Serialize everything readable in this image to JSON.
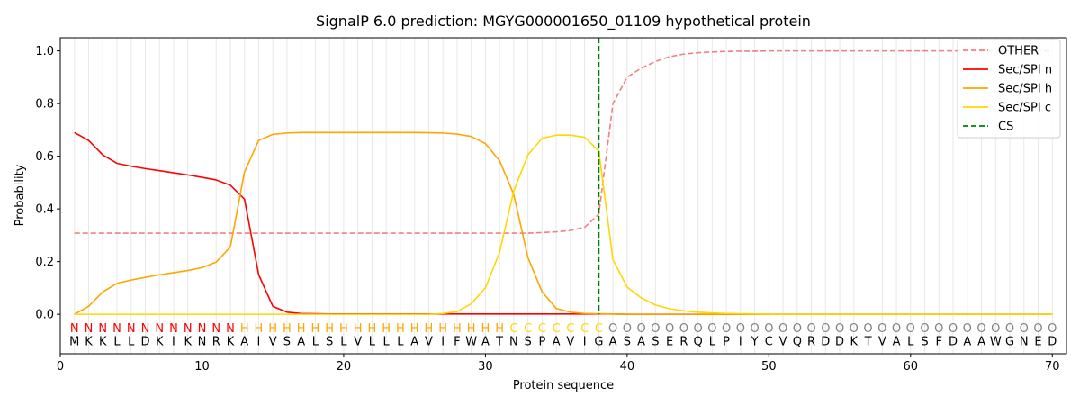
{
  "chart_data": {
    "type": "line",
    "title": "SignalP 6.0 prediction: MGYG000001650_01109 hypothetical protein",
    "xlabel": "Protein sequence",
    "ylabel": "Probability",
    "xlim": [
      0,
      71
    ],
    "ylim": [
      -0.15,
      1.05
    ],
    "xticks": [
      0,
      10,
      20,
      30,
      40,
      50,
      60,
      70
    ],
    "yticks": [
      0.0,
      0.2,
      0.4,
      0.6,
      0.8,
      1.0
    ],
    "xtick_labels": [
      "0",
      "10",
      "20",
      "30",
      "40",
      "50",
      "60",
      "70"
    ],
    "ytick_labels": [
      "0.0",
      "0.2",
      "0.4",
      "0.6",
      "0.8",
      "1.0"
    ],
    "grid": "vertical lines at each residue",
    "legend_position": "top-right",
    "sequence": [
      "M",
      "K",
      "K",
      "L",
      "L",
      "D",
      "K",
      "I",
      "K",
      "N",
      "R",
      "K",
      "A",
      "I",
      "V",
      "S",
      "A",
      "L",
      "S",
      "L",
      "V",
      "L",
      "L",
      "L",
      "A",
      "V",
      "I",
      "F",
      "W",
      "A",
      "T",
      "N",
      "S",
      "P",
      "A",
      "V",
      "I",
      "G",
      "A",
      "S",
      "A",
      "S",
      "E",
      "R",
      "Q",
      "L",
      "P",
      "I",
      "Y",
      "C",
      "V",
      "Q",
      "R",
      "D",
      "D",
      "K",
      "T",
      "V",
      "A",
      "L",
      "S",
      "F",
      "D",
      "A",
      "A",
      "W",
      "G",
      "N",
      "E",
      "D"
    ],
    "labels": [
      "N",
      "N",
      "N",
      "N",
      "N",
      "N",
      "N",
      "N",
      "N",
      "N",
      "N",
      "N",
      "H",
      "H",
      "H",
      "H",
      "H",
      "H",
      "H",
      "H",
      "H",
      "H",
      "H",
      "H",
      "H",
      "H",
      "H",
      "H",
      "H",
      "H",
      "H",
      "C",
      "C",
      "C",
      "C",
      "C",
      "C",
      "C",
      "O",
      "O",
      "O",
      "O",
      "O",
      "O",
      "O",
      "O",
      "O",
      "O",
      "O",
      "O",
      "O",
      "O",
      "O",
      "O",
      "O",
      "O",
      "O",
      "O",
      "O",
      "O",
      "O",
      "O",
      "O",
      "O",
      "O",
      "O",
      "O",
      "O",
      "O",
      "O"
    ],
    "label_colors": {
      "N": "#ff0000",
      "H": "#ffa500",
      "C": "#ffd700",
      "O": "#808080"
    },
    "cs_position": 38,
    "series": [
      {
        "name": "OTHER",
        "color": "#f08080",
        "style": "dashed",
        "values": [
          0.308,
          0.308,
          0.308,
          0.308,
          0.308,
          0.308,
          0.308,
          0.308,
          0.308,
          0.308,
          0.308,
          0.308,
          0.308,
          0.308,
          0.308,
          0.308,
          0.308,
          0.308,
          0.308,
          0.308,
          0.308,
          0.308,
          0.308,
          0.308,
          0.308,
          0.308,
          0.308,
          0.308,
          0.308,
          0.308,
          0.308,
          0.308,
          0.308,
          0.31,
          0.313,
          0.318,
          0.33,
          0.38,
          0.8,
          0.9,
          0.935,
          0.96,
          0.978,
          0.988,
          0.993,
          0.996,
          0.998,
          0.999,
          0.999,
          1.0,
          1.0,
          1.0,
          1.0,
          1.0,
          1.0,
          1.0,
          1.0,
          1.0,
          1.0,
          1.0,
          1.0,
          1.0,
          1.0,
          1.0,
          1.0,
          1.0,
          1.0,
          1.0,
          1.0,
          1.0
        ]
      },
      {
        "name": "Sec/SPI n",
        "color": "#ff0000",
        "style": "solid",
        "values": [
          0.69,
          0.66,
          0.605,
          0.573,
          0.562,
          0.553,
          0.545,
          0.537,
          0.529,
          0.52,
          0.51,
          0.49,
          0.437,
          0.15,
          0.03,
          0.008,
          0.003,
          0.002,
          0.001,
          0.001,
          0.001,
          0.001,
          0.001,
          0.001,
          0.001,
          0.001,
          0.001,
          0.001,
          0.001,
          0.001,
          0.001,
          0.001,
          0.001,
          0.001,
          0.001,
          0.001,
          0.001,
          0.001,
          0.001,
          0.0,
          0.0,
          0.0,
          0.0,
          0.0,
          0.0,
          0.0,
          0.0,
          0.0,
          0.0,
          0.0,
          0.0,
          0.0,
          0.0,
          0.0,
          0.0,
          0.0,
          0.0,
          0.0,
          0.0,
          0.0,
          0.0,
          0.0,
          0.0,
          0.0,
          0.0,
          0.0,
          0.0,
          0.0,
          0.0,
          0.0
        ]
      },
      {
        "name": "Sec/SPI h",
        "color": "#ffa500",
        "style": "solid",
        "values": [
          0.0,
          0.03,
          0.085,
          0.117,
          0.13,
          0.14,
          0.15,
          0.158,
          0.166,
          0.177,
          0.198,
          0.255,
          0.54,
          0.66,
          0.683,
          0.688,
          0.69,
          0.69,
          0.69,
          0.69,
          0.69,
          0.69,
          0.69,
          0.69,
          0.69,
          0.689,
          0.688,
          0.684,
          0.675,
          0.648,
          0.583,
          0.455,
          0.215,
          0.085,
          0.022,
          0.008,
          0.003,
          0.002,
          0.001,
          0.0,
          0.0,
          0.0,
          0.0,
          0.0,
          0.0,
          0.0,
          0.0,
          0.0,
          0.0,
          0.0,
          0.0,
          0.0,
          0.0,
          0.0,
          0.0,
          0.0,
          0.0,
          0.0,
          0.0,
          0.0,
          0.0,
          0.0,
          0.0,
          0.0,
          0.0,
          0.0,
          0.0,
          0.0,
          0.0,
          0.0
        ]
      },
      {
        "name": "Sec/SPI c",
        "color": "#ffd700",
        "style": "solid",
        "values": [
          0.0,
          0.0,
          0.0,
          0.0,
          0.0,
          0.0,
          0.0,
          0.0,
          0.0,
          0.0,
          0.0,
          0.0,
          0.0,
          0.0,
          0.0,
          0.0,
          0.0,
          0.0,
          0.0,
          0.0,
          0.0,
          0.0,
          0.0,
          0.0,
          0.0,
          0.0,
          0.003,
          0.01,
          0.04,
          0.1,
          0.235,
          0.468,
          0.605,
          0.668,
          0.68,
          0.68,
          0.672,
          0.62,
          0.207,
          0.103,
          0.062,
          0.035,
          0.021,
          0.013,
          0.008,
          0.005,
          0.003,
          0.002,
          0.001,
          0.0,
          0.0,
          0.0,
          0.0,
          0.0,
          0.0,
          0.0,
          0.0,
          0.0,
          0.0,
          0.0,
          0.0,
          0.0,
          0.0,
          0.0,
          0.0,
          0.0,
          0.0,
          0.0,
          0.0,
          0.0
        ]
      }
    ],
    "cs_series": {
      "name": "CS",
      "color": "#008000",
      "style": "dashed"
    }
  }
}
